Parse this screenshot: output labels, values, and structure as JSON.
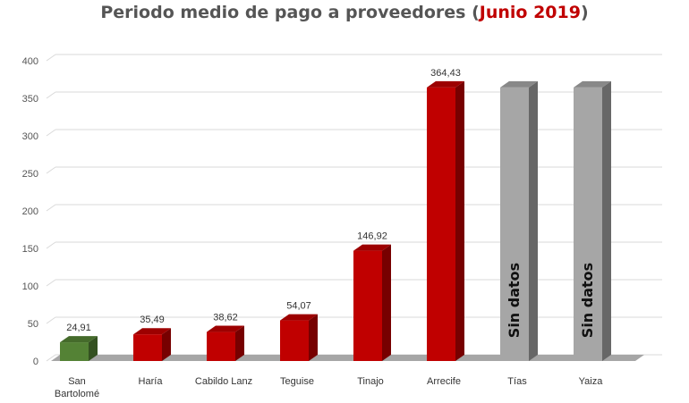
{
  "chart_data": {
    "type": "bar",
    "title": "Periodo medio de pago a proveedores (Junio 2019)",
    "title_parts": {
      "prefix": "Periodo medio de pago a proveedores (",
      "highlight": "Junio 2019",
      "suffix": ")"
    },
    "categories": [
      "San Bartolomé",
      "Haría",
      "Cabildo Lanz",
      "Teguise",
      "Tinajo",
      "Arrecife",
      "Tías",
      "Yaiza"
    ],
    "values": [
      24.91,
      35.49,
      38.62,
      54.07,
      146.92,
      364.43,
      null,
      null
    ],
    "data_labels": [
      "24,91",
      "35,49",
      "38,62",
      "54,07",
      "146,92",
      "364,43",
      "Sin datos",
      "Sin datos"
    ],
    "bar_colors": [
      "#548235",
      "#c00000",
      "#c00000",
      "#c00000",
      "#c00000",
      "#c00000",
      "#a6a6a6",
      "#a6a6a6"
    ],
    "no_data_placeholder_value": 364.43,
    "ylim": [
      0,
      400
    ],
    "yticks": [
      0,
      50,
      100,
      150,
      200,
      250,
      300,
      350,
      400
    ],
    "xlabel": "",
    "ylabel": "",
    "grid": true,
    "legend": "none",
    "style": "3d-column"
  },
  "colors": {
    "title": "#555555",
    "title_highlight": "#c00000",
    "grid": "#d9d9d9",
    "floor": "#a6a6a6"
  }
}
